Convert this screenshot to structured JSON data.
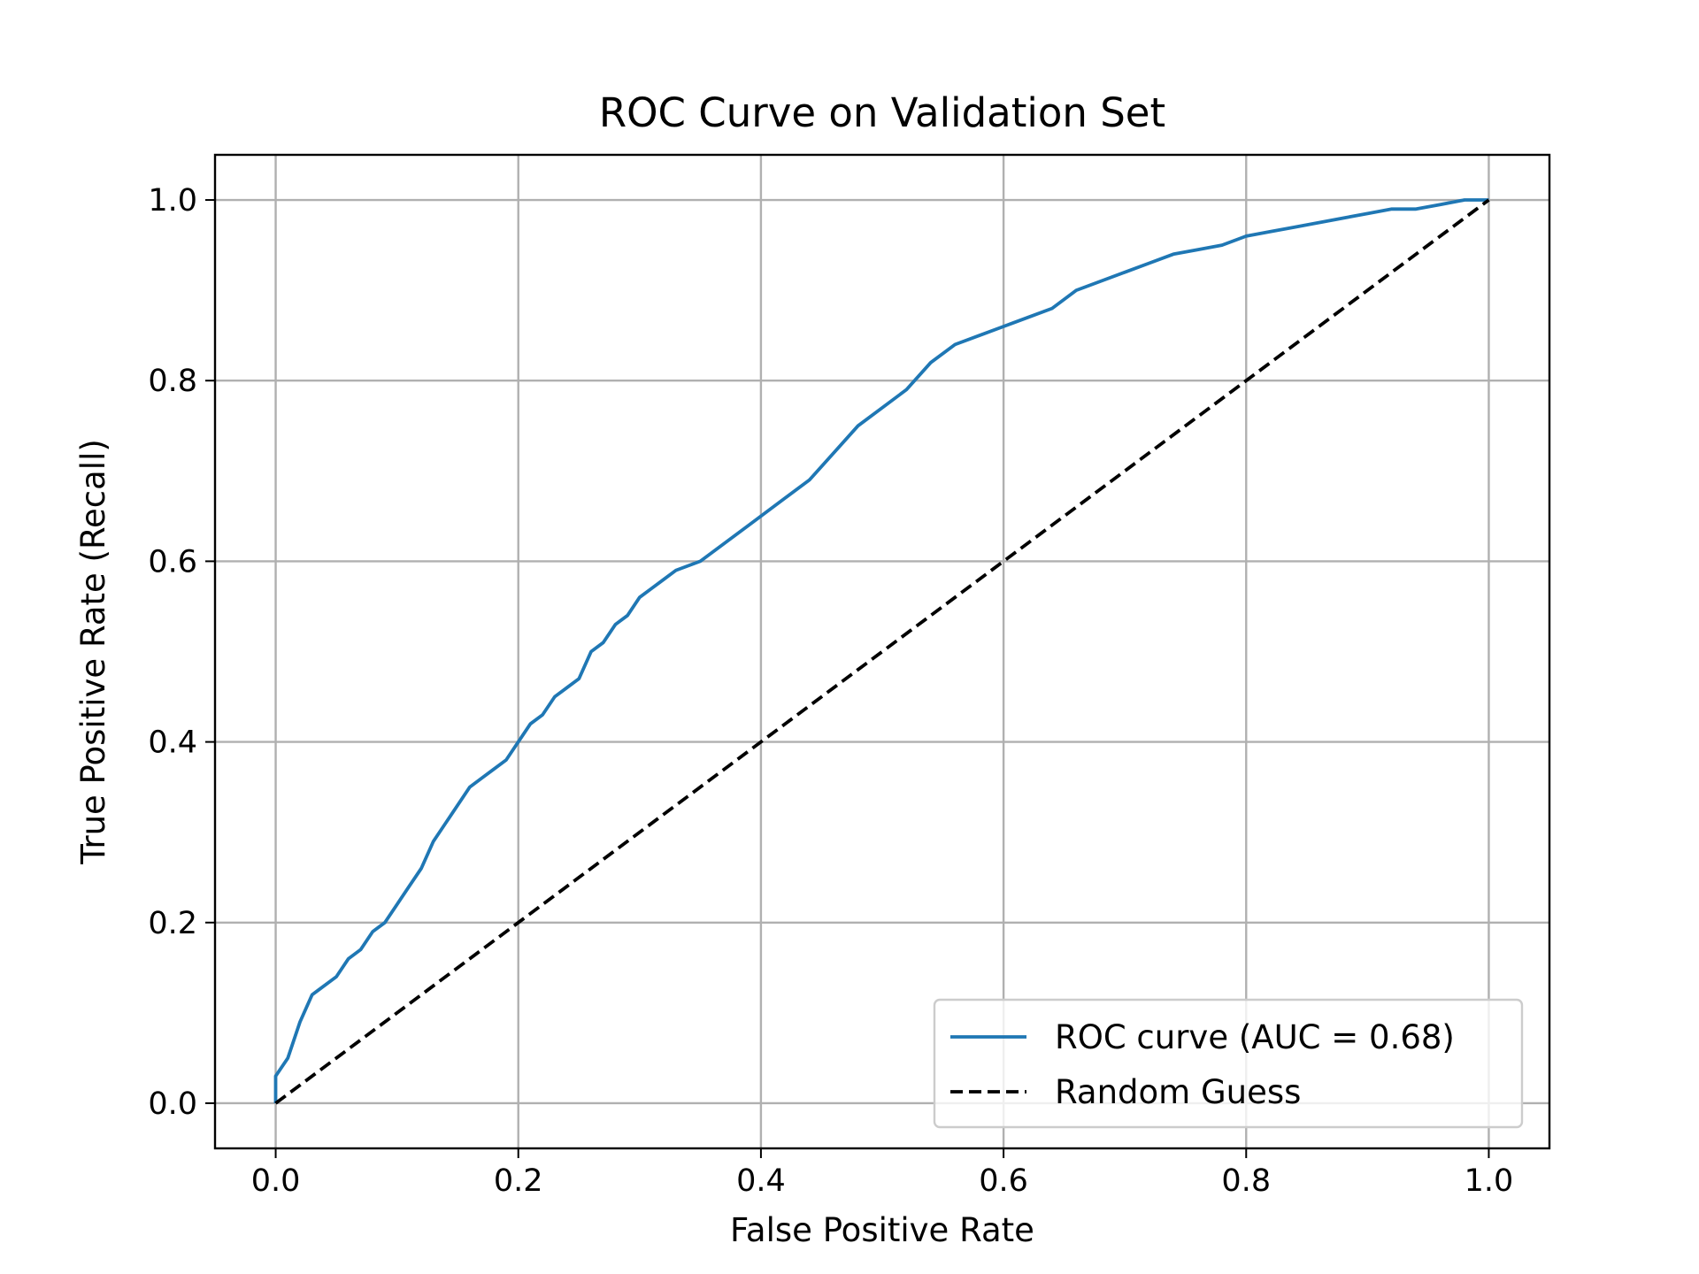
{
  "chart_data": {
    "type": "line",
    "title": "ROC Curve on Validation Set",
    "xlabel": "False Positive Rate",
    "ylabel": "True Positive Rate (Recall)",
    "xlim": [
      -0.05,
      1.05
    ],
    "ylim": [
      -0.05,
      1.05
    ],
    "xticks": [
      "0.0",
      "0.2",
      "0.4",
      "0.6",
      "0.8",
      "1.0"
    ],
    "yticks": [
      "0.0",
      "0.2",
      "0.4",
      "0.6",
      "0.8",
      "1.0"
    ],
    "grid": true,
    "legend_position": "lower-right",
    "series": [
      {
        "name": "ROC curve (AUC = 0.68)",
        "color": "#1f77b4",
        "style": "solid",
        "x": [
          0.0,
          0.0,
          0.01,
          0.02,
          0.03,
          0.035,
          0.05,
          0.06,
          0.07,
          0.08,
          0.09,
          0.1,
          0.11,
          0.12,
          0.13,
          0.14,
          0.15,
          0.16,
          0.17,
          0.18,
          0.19,
          0.2,
          0.21,
          0.22,
          0.23,
          0.24,
          0.25,
          0.26,
          0.27,
          0.28,
          0.29,
          0.3,
          0.31,
          0.32,
          0.33,
          0.35,
          0.37,
          0.39,
          0.4,
          0.42,
          0.44,
          0.46,
          0.48,
          0.5,
          0.52,
          0.54,
          0.56,
          0.58,
          0.6,
          0.62,
          0.64,
          0.66,
          0.68,
          0.7,
          0.72,
          0.74,
          0.76,
          0.78,
          0.8,
          0.82,
          0.84,
          0.86,
          0.88,
          0.9,
          0.92,
          0.94,
          0.96,
          0.98,
          1.0
        ],
        "y": [
          0.0,
          0.03,
          0.05,
          0.09,
          0.12,
          0.125,
          0.14,
          0.16,
          0.17,
          0.19,
          0.2,
          0.22,
          0.24,
          0.26,
          0.29,
          0.31,
          0.33,
          0.35,
          0.36,
          0.37,
          0.38,
          0.4,
          0.42,
          0.43,
          0.45,
          0.46,
          0.47,
          0.5,
          0.51,
          0.53,
          0.54,
          0.56,
          0.57,
          0.58,
          0.59,
          0.6,
          0.62,
          0.64,
          0.65,
          0.67,
          0.69,
          0.72,
          0.75,
          0.77,
          0.79,
          0.82,
          0.84,
          0.85,
          0.86,
          0.87,
          0.88,
          0.9,
          0.91,
          0.92,
          0.93,
          0.94,
          0.945,
          0.95,
          0.96,
          0.965,
          0.97,
          0.975,
          0.98,
          0.985,
          0.99,
          0.99,
          0.995,
          1.0,
          1.0
        ]
      },
      {
        "name": "Random Guess",
        "color": "#000000",
        "style": "dashed",
        "x": [
          0.0,
          1.0
        ],
        "y": [
          0.0,
          1.0
        ]
      }
    ]
  }
}
